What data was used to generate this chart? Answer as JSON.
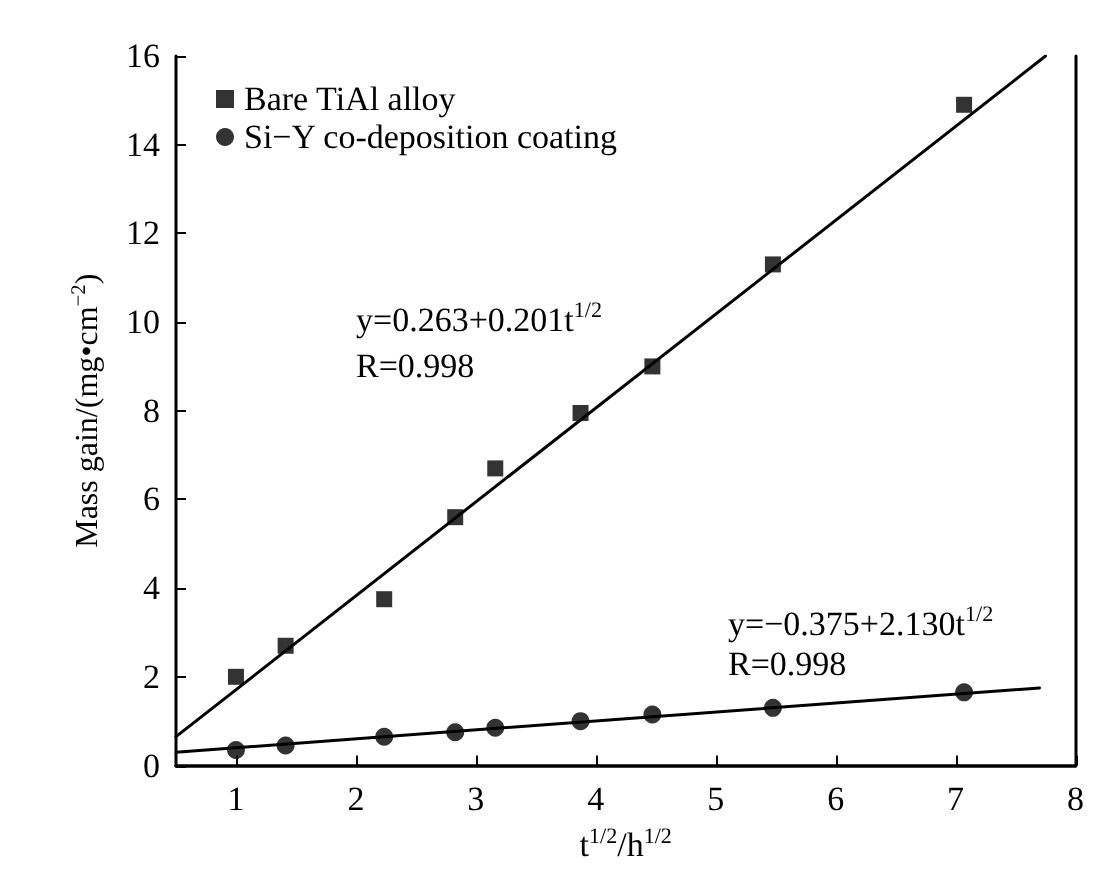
{
  "chart_data": {
    "type": "scatter",
    "xlabel": "t$^{1/2}$/h$^{1/2}$",
    "ylabel": "Mass gain/(mg•cm$^{−2}$)",
    "xlim": [
      0.5,
      8
    ],
    "xticks": [
      1,
      2,
      3,
      4,
      5,
      6,
      7,
      8
    ],
    "ylim": [
      0,
      16
    ],
    "yticks": [
      0,
      2,
      4,
      6,
      8,
      10,
      12,
      14,
      16
    ],
    "grid": false,
    "legend": "top left",
    "series": [
      {
        "name": "Bare TiAl alloy",
        "marker": "square",
        "color": "#000000",
        "x": [
          1,
          1.414,
          2.236,
          2.828,
          3.162,
          3.873,
          4.472,
          5.477,
          7.071
        ],
        "values": [
          2.0,
          2.7,
          3.75,
          5.6,
          6.7,
          7.95,
          9.0,
          11.3,
          14.9
        ]
      },
      {
        "name": "Si−Y co-deposition coating",
        "marker": "circle",
        "color": "#000000",
        "x": [
          1,
          1.414,
          2.236,
          2.828,
          3.162,
          3.873,
          4.472,
          5.477,
          7.071
        ],
        "values": [
          0.35,
          0.45,
          0.65,
          0.75,
          0.85,
          1.0,
          1.15,
          1.3,
          1.65
        ]
      },
      {
        "type": "line",
        "marker": "none",
        "line_style": "solid",
        "color": "#000000",
        "x": [
          0.5,
          7.75
        ],
        "values": [
          0.65,
          16.0
        ]
      },
      {
        "type": "line",
        "marker": "none",
        "line_style": "solid",
        "color": "#000000",
        "x": [
          0.5,
          7.7
        ],
        "values": [
          0.3,
          1.75
        ]
      }
    ],
    "annotations": [
      "y=0.263+0.201t$^{1/2}$",
      "R=0.998",
      "y=−0.375+2.130t$^{1/2}$",
      "R=0.998"
    ]
  }
}
